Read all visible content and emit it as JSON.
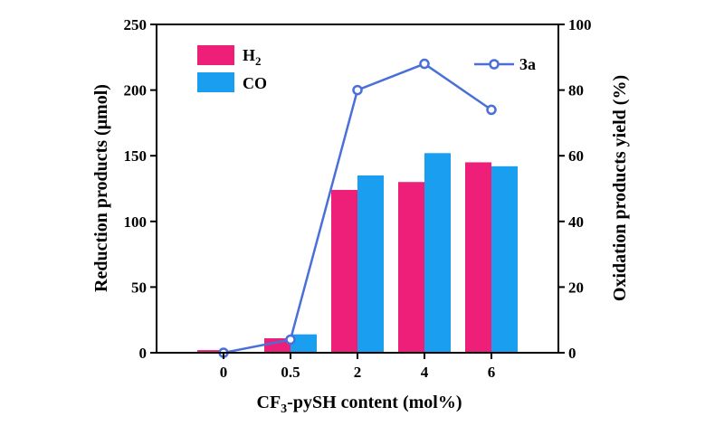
{
  "chart_data": {
    "type": "bar",
    "categories": [
      "0",
      "0.5",
      "2",
      "4",
      "6"
    ],
    "series": [
      {
        "name": "H",
        "subscript": "2",
        "values": [
          2,
          11,
          124,
          130,
          145
        ],
        "color": "#ee1f79",
        "axis": "left"
      },
      {
        "name": "CO",
        "values": [
          0,
          14,
          135,
          152,
          142
        ],
        "color": "#1a9ff0",
        "axis": "left"
      },
      {
        "name": "3a",
        "type": "line",
        "values": [
          0,
          4,
          80,
          88,
          74
        ],
        "color": "#4a6fd8",
        "axis": "right"
      }
    ],
    "xlabel": {
      "pre": "CF",
      "sub": "3",
      "post": "-pySH content (mol%)"
    },
    "ylabel": "Reduction products (μmol)",
    "y2label": "Oxidation products yield (%)",
    "ylim": [
      0,
      250
    ],
    "y2lim": [
      0,
      100
    ],
    "yticks": [
      0,
      50,
      100,
      150,
      200,
      250
    ],
    "y2ticks": [
      0,
      20,
      40,
      60,
      80,
      100
    ]
  }
}
